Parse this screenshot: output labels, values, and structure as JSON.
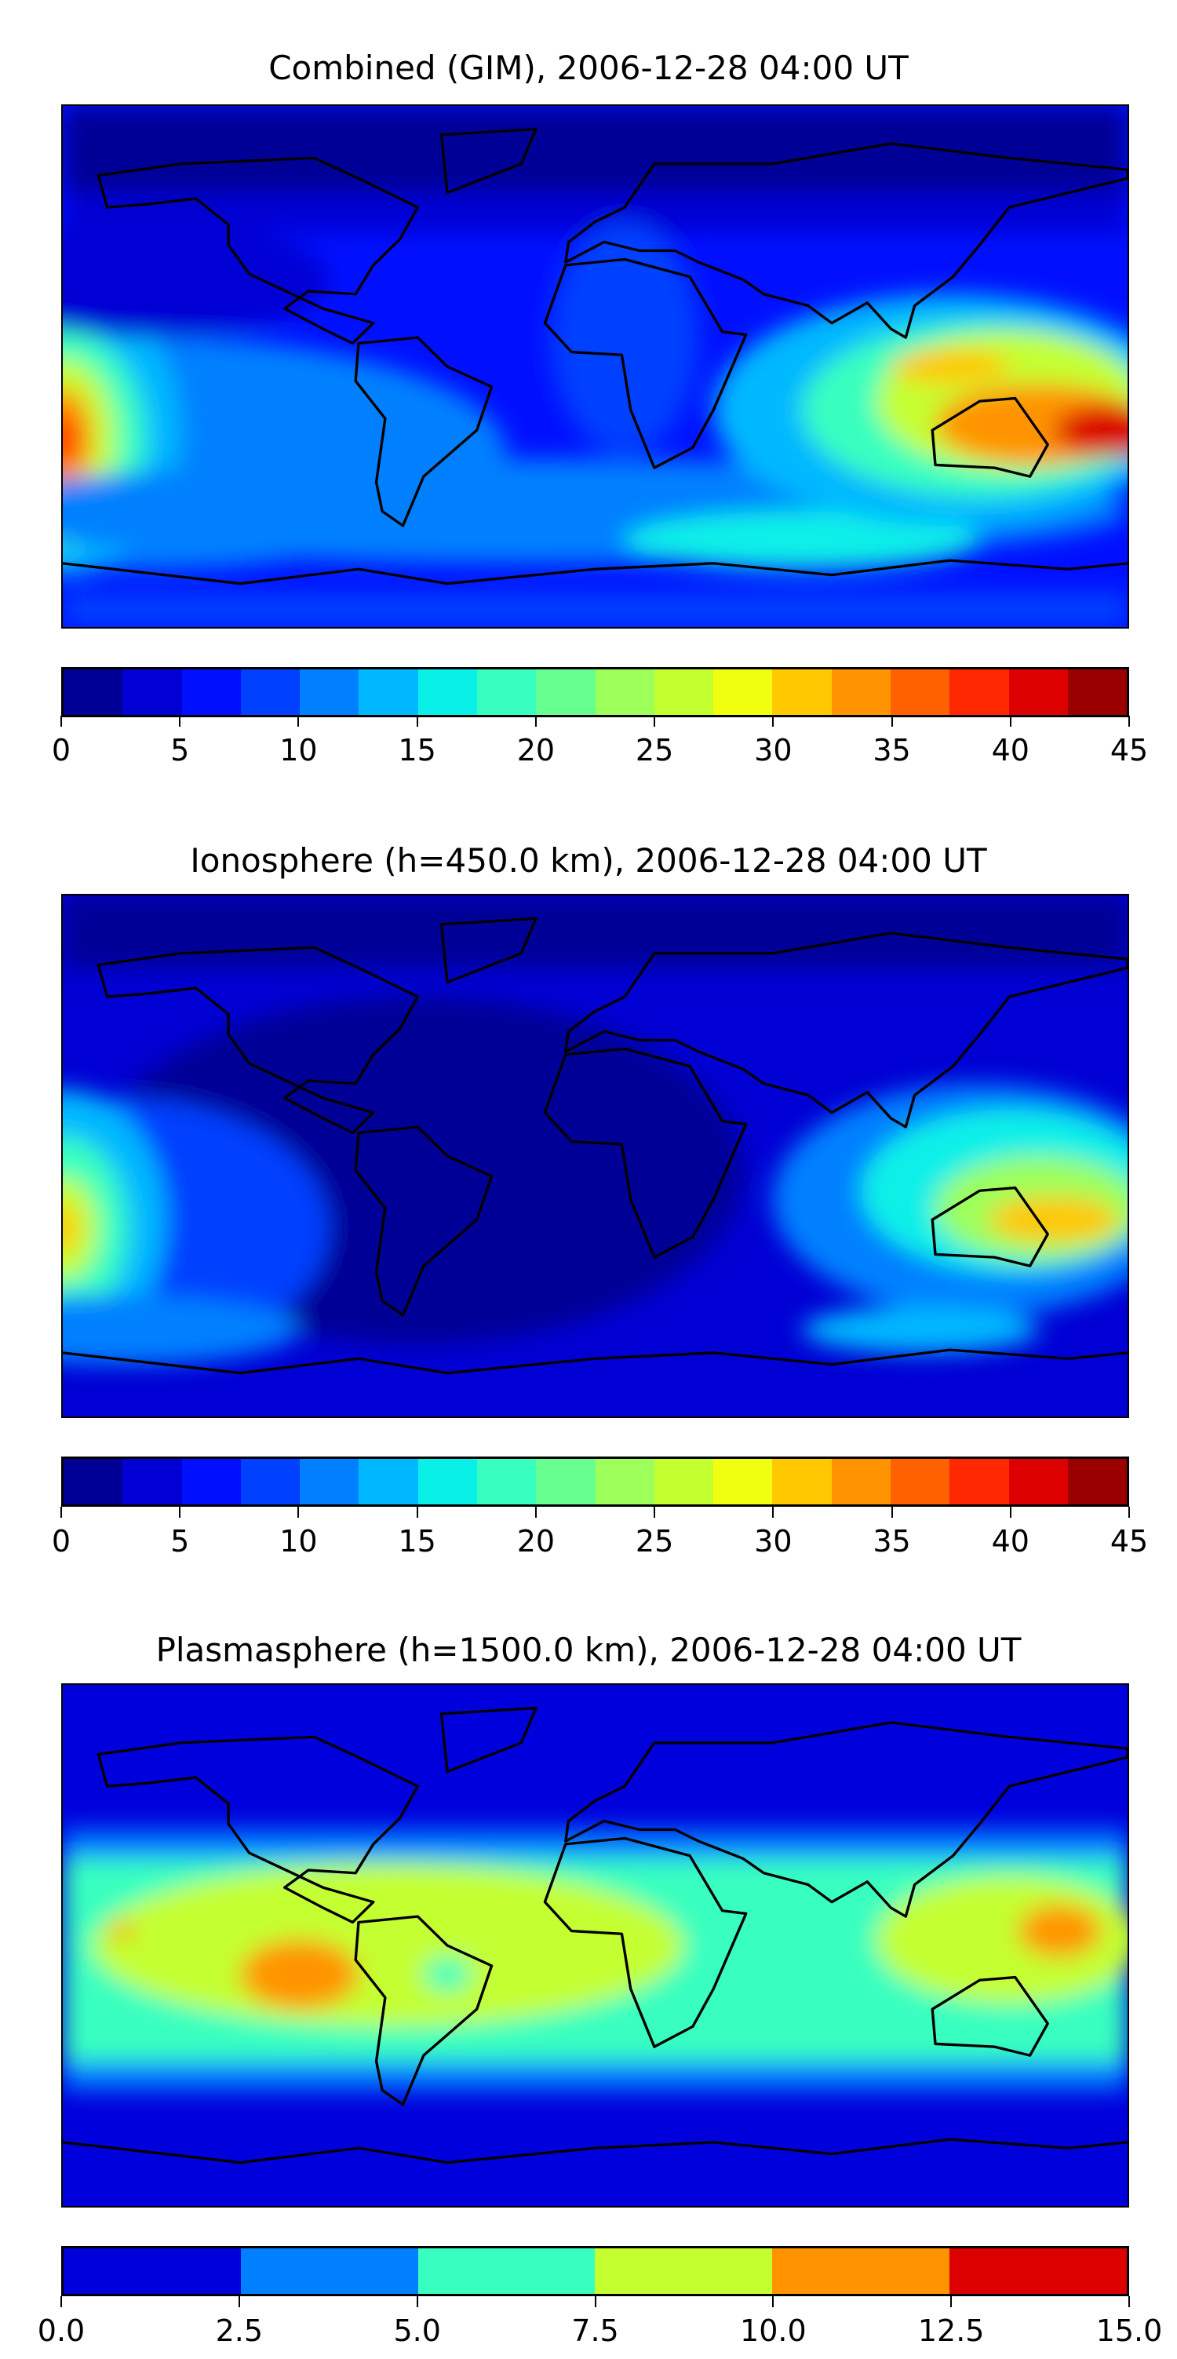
{
  "chart_data": [
    {
      "type": "heatmap",
      "title": "Combined (GIM), 2006-12-28 04:00 UT",
      "colorbar": {
        "min": 0,
        "max": 45,
        "step": 2.5,
        "tick_labels": [
          "0",
          "5",
          "10",
          "15",
          "20",
          "25",
          "30",
          "35",
          "40",
          "45"
        ],
        "colors": [
          "#000096",
          "#0000d4",
          "#0010ff",
          "#0040ff",
          "#0080ff",
          "#00b8ff",
          "#08f0e8",
          "#38ffc0",
          "#66ff90",
          "#9cff5a",
          "#c4ff30",
          "#f0ff10",
          "#ffc800",
          "#ff9400",
          "#ff6000",
          "#ff2800",
          "#dc0000",
          "#9a0000"
        ]
      },
      "xlabel": "",
      "ylabel": ""
    },
    {
      "type": "heatmap",
      "title": "Ionosphere  (h=450.0 km), 2006-12-28 04:00 UT",
      "colorbar": {
        "min": 0,
        "max": 45,
        "step": 2.5,
        "tick_labels": [
          "0",
          "5",
          "10",
          "15",
          "20",
          "25",
          "30",
          "35",
          "40",
          "45"
        ],
        "colors": [
          "#000096",
          "#0000d4",
          "#0010ff",
          "#0040ff",
          "#0080ff",
          "#00b8ff",
          "#08f0e8",
          "#38ffc0",
          "#66ff90",
          "#9cff5a",
          "#c4ff30",
          "#f0ff10",
          "#ffc800",
          "#ff9400",
          "#ff6000",
          "#ff2800",
          "#dc0000",
          "#9a0000"
        ]
      },
      "xlabel": "",
      "ylabel": ""
    },
    {
      "type": "heatmap",
      "title": "Plasmasphere (h=1500.0 km), 2006-12-28 04:00 UT",
      "colorbar": {
        "min": 0,
        "max": 15,
        "step": 2.5,
        "tick_labels": [
          "0.0",
          "2.5",
          "5.0",
          "7.5",
          "10.0",
          "12.5",
          "15.0"
        ],
        "colors": [
          "#0000dc",
          "#0080ff",
          "#38ffc0",
          "#c4ff30",
          "#ff9400",
          "#dc0000"
        ]
      },
      "xlabel": "",
      "ylabel": ""
    }
  ]
}
